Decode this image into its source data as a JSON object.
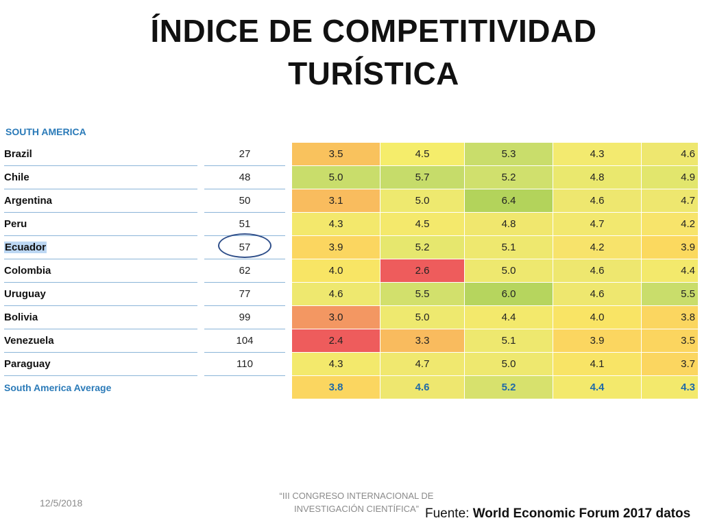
{
  "title": {
    "line1": "ÍNDICE DE COMPETITIVIDAD",
    "line2": "TURÍSTICA"
  },
  "region_label": "SOUTH AMERICA",
  "table": {
    "rows": [
      {
        "country": "Brazil",
        "rank": "27",
        "scores": [
          "3.5",
          "4.5",
          "5.3",
          "4.3",
          "4.6"
        ],
        "colors": [
          "#f9c25d",
          "#f5ed6b",
          "#c9dd6b",
          "#f3ea6f",
          "#eee76f"
        ]
      },
      {
        "country": "Chile",
        "rank": "48",
        "scores": [
          "5.0",
          "5.7",
          "5.2",
          "4.8",
          "4.9"
        ],
        "colors": [
          "#c9dd6b",
          "#c6dc6a",
          "#d0e06d",
          "#eae86e",
          "#e2e66d"
        ]
      },
      {
        "country": "Argentina",
        "rank": "50",
        "scores": [
          "3.1",
          "5.0",
          "6.4",
          "4.6",
          "4.7"
        ],
        "colors": [
          "#f9bc5e",
          "#eee96f",
          "#b3d35b",
          "#eee76f",
          "#eee76f"
        ]
      },
      {
        "country": "Peru",
        "rank": "51",
        "scores": [
          "4.3",
          "4.5",
          "4.8",
          "4.7",
          "4.2"
        ],
        "colors": [
          "#f3e86c",
          "#f4e96c",
          "#f0e76e",
          "#f2e86f",
          "#f7e46b"
        ]
      },
      {
        "country": "Ecuador",
        "rank": "57",
        "scores": [
          "3.9",
          "5.2",
          "5.1",
          "4.2",
          "3.9"
        ],
        "colors": [
          "#fbd660",
          "#e6e76e",
          "#eee86f",
          "#f7e36b",
          "#fbd95f"
        ]
      },
      {
        "country": "Colombia",
        "rank": "62",
        "scores": [
          "4.0",
          "2.6",
          "5.0",
          "4.6",
          "4.4"
        ],
        "colors": [
          "#f8e565",
          "#ee5c5c",
          "#eee86f",
          "#eee76f",
          "#f3e96c"
        ]
      },
      {
        "country": "Uruguay",
        "rank": "77",
        "scores": [
          "4.6",
          "5.5",
          "6.0",
          "4.6",
          "5.5"
        ],
        "colors": [
          "#eee86f",
          "#d2e06c",
          "#b6d55e",
          "#eee76f",
          "#c9dd6b"
        ]
      },
      {
        "country": "Bolivia",
        "rank": "99",
        "scores": [
          "3.0",
          "5.0",
          "4.4",
          "4.0",
          "3.8"
        ],
        "colors": [
          "#f39762",
          "#eee96f",
          "#f3e96c",
          "#f9e465",
          "#fbd660"
        ]
      },
      {
        "country": "Venezuela",
        "rank": "104",
        "scores": [
          "2.4",
          "3.3",
          "5.1",
          "3.9",
          "3.5"
        ],
        "colors": [
          "#ee5c5c",
          "#f9bb5e",
          "#eee86f",
          "#fbd660",
          "#fbd55f"
        ]
      },
      {
        "country": "Paraguay",
        "rank": "110",
        "scores": [
          "4.3",
          "4.7",
          "5.0",
          "4.1",
          "3.7"
        ],
        "colors": [
          "#f3e96c",
          "#f0e86f",
          "#eee86f",
          "#f8e466",
          "#fbd660"
        ]
      }
    ],
    "average": {
      "label": "South America Average",
      "scores": [
        "3.8",
        "4.6",
        "5.2",
        "4.4",
        "4.3"
      ],
      "colors": [
        "#fbd660",
        "#eee76f",
        "#d7e16d",
        "#f3e96c",
        "#f3e96c"
      ]
    }
  },
  "footer": {
    "date": "12/5/2018",
    "conference_line1": "“III CONGRESO INTERNACIONAL DE",
    "conference_line2": "INVESTIGACIÓN CIENTÍFICA”",
    "source_prefix": "Fuente: ",
    "source_bold": "World Economic Forum 2017 datos"
  }
}
